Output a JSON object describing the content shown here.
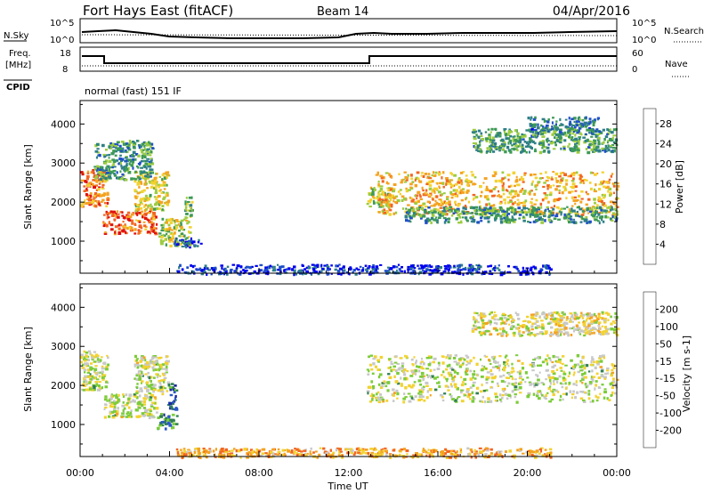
{
  "header": {
    "station": "Fort Hays East (fitACF)",
    "beam": "Beam 14",
    "date": "04/Apr/2016",
    "cpid_text": "normal (fast) 151 IF"
  },
  "small_panels": {
    "nsky_label": "N.Sky",
    "nsearch_label": "N.Search",
    "noise_ticks": [
      "10^5",
      "10^0"
    ],
    "freq_label_1": "Freq.",
    "freq_label_2": "[MHz]",
    "freq_ticks": [
      "18",
      "8"
    ],
    "nave_label": "Nave",
    "nave_ticks": [
      "60",
      "0"
    ],
    "cpid_label": "CPID"
  },
  "chart_data": [
    {
      "type": "heatmap",
      "panel": "power",
      "ylabel": "Slant Range [km]",
      "yticks": [
        "1000",
        "2000",
        "3000",
        "4000"
      ],
      "ylim": [
        180,
        4600
      ],
      "xlim": [
        0,
        24
      ],
      "colorbar": {
        "label": "Power [dB]",
        "ticks": [
          "4",
          "8",
          "12",
          "16",
          "20",
          "24",
          "28"
        ],
        "range": [
          0,
          31
        ],
        "colors": [
          "#0000ee",
          "#1e4fc8",
          "#2f7f88",
          "#3d9a55",
          "#9ccc40",
          "#f2d230",
          "#f4a321",
          "#f26522",
          "#e01010"
        ]
      },
      "regions": [
        {
          "t0": 0.0,
          "t1": 1.2,
          "r0": 1900,
          "r1": 2900,
          "level": 0.78
        },
        {
          "t0": 1.0,
          "t1": 3.4,
          "r0": 1200,
          "r1": 1800,
          "level": 0.82
        },
        {
          "t0": 2.4,
          "t1": 3.9,
          "r0": 1800,
          "r1": 2800,
          "level": 0.6
        },
        {
          "t0": 0.6,
          "t1": 3.2,
          "r0": 2600,
          "r1": 3600,
          "level": 0.35
        },
        {
          "t0": 3.5,
          "t1": 4.9,
          "r0": 900,
          "r1": 1600,
          "level": 0.55
        },
        {
          "t0": 4.2,
          "t1": 5.4,
          "r0": 850,
          "r1": 1100,
          "level": 0.2
        },
        {
          "t0": 4.6,
          "t1": 5.0,
          "r0": 1600,
          "r1": 2200,
          "level": 0.45
        },
        {
          "t0": 12.8,
          "t1": 13.8,
          "r0": 1900,
          "r1": 2400,
          "level": 0.55
        },
        {
          "t0": 13.2,
          "t1": 24.0,
          "r0": 1700,
          "r1": 2800,
          "level": 0.68
        },
        {
          "t0": 14.5,
          "t1": 24.0,
          "r0": 1500,
          "r1": 1900,
          "level": 0.35
        },
        {
          "t0": 17.5,
          "t1": 24.0,
          "r0": 3300,
          "r1": 3900,
          "level": 0.38
        },
        {
          "t0": 20.0,
          "t1": 23.2,
          "r0": 3800,
          "r1": 4200,
          "level": 0.28
        },
        {
          "t0": 4.2,
          "t1": 21.0,
          "r0": 180,
          "r1": 420,
          "level": 0.12
        }
      ]
    },
    {
      "type": "heatmap",
      "panel": "velocity",
      "ylabel": "Slant Range [km]",
      "yticks": [
        "1000",
        "2000",
        "3000",
        "4000"
      ],
      "ylim": [
        180,
        4600
      ],
      "xlim": [
        0,
        24
      ],
      "xticks": [
        "00:00",
        "04:00",
        "08:00",
        "12:00",
        "16:00",
        "20:00",
        "00:00"
      ],
      "xlabel": "Time UT",
      "colorbar": {
        "label": "Velocity [m s-1]",
        "ticks": [
          "200",
          "100",
          "50",
          "15",
          "-15",
          "-50",
          "-100",
          "-200"
        ],
        "colors": [
          "#1a2a9a",
          "#2a58c8",
          "#2f7f52",
          "#7ccc3a",
          "#c8c8c8",
          "#f2d230",
          "#f4a321",
          "#f26522",
          "#e01010"
        ]
      },
      "regions": [
        {
          "t0": 0.0,
          "t1": 1.2,
          "r0": 1900,
          "r1": 2900,
          "level": 0.5
        },
        {
          "t0": 1.0,
          "t1": 3.4,
          "r0": 1200,
          "r1": 1800,
          "level": 0.5
        },
        {
          "t0": 2.4,
          "t1": 3.9,
          "r0": 1800,
          "r1": 2800,
          "level": 0.5
        },
        {
          "t0": 3.4,
          "t1": 4.3,
          "r0": 900,
          "r1": 1300,
          "level": 0.25
        },
        {
          "t0": 3.9,
          "t1": 4.3,
          "r0": 1400,
          "r1": 2100,
          "level": 0.2
        },
        {
          "t0": 12.8,
          "t1": 24.0,
          "r0": 1600,
          "r1": 2800,
          "level": 0.5
        },
        {
          "t0": 17.5,
          "t1": 24.0,
          "r0": 3300,
          "r1": 3900,
          "level": 0.55
        },
        {
          "t0": 4.2,
          "t1": 21.0,
          "r0": 180,
          "r1": 420,
          "level": 0.7
        }
      ]
    }
  ]
}
